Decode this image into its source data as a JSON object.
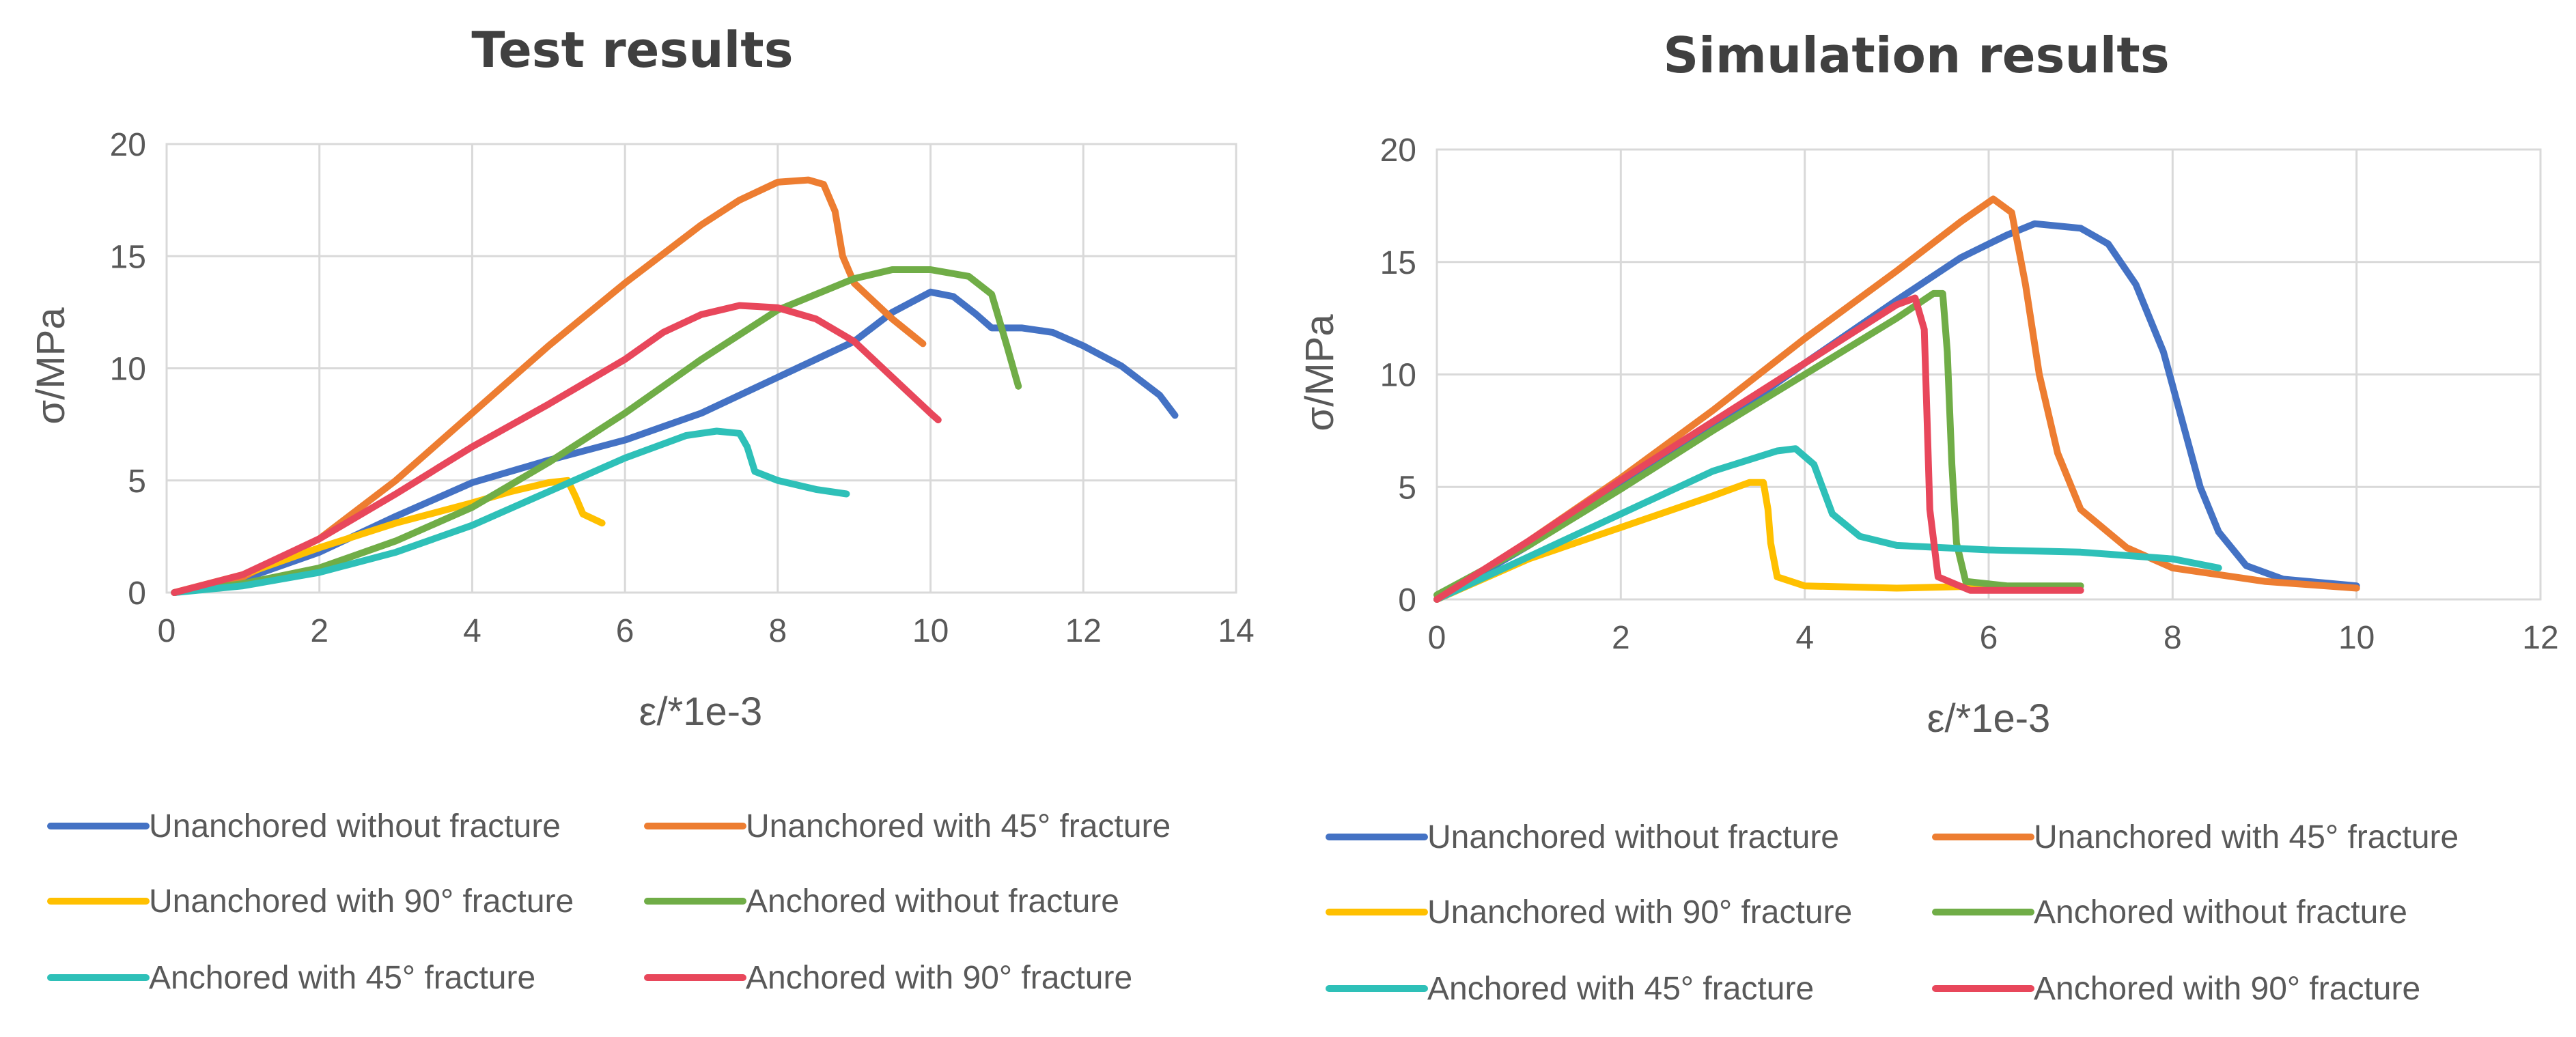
{
  "chart_data": [
    {
      "type": "line",
      "title": "Test results",
      "xlabel": "ε/*1e-3",
      "ylabel": "σ/MPa",
      "xlim": [
        0,
        14
      ],
      "ylim": [
        0,
        20
      ],
      "xticks": [
        0,
        2,
        4,
        6,
        8,
        10,
        12,
        14
      ],
      "yticks": [
        0,
        5,
        10,
        15,
        20
      ],
      "grid": true,
      "legend": "bottom",
      "series": [
        {
          "name": "Unanchored without fracture",
          "color": "#4472C4",
          "points": [
            [
              0.1,
              0
            ],
            [
              1,
              0.6
            ],
            [
              2,
              1.8
            ],
            [
              3,
              3.4
            ],
            [
              4,
              4.9
            ],
            [
              5,
              5.9
            ],
            [
              6,
              6.8
            ],
            [
              7,
              8
            ],
            [
              8,
              9.6
            ],
            [
              9,
              11.2
            ],
            [
              9.5,
              12.5
            ],
            [
              10,
              13.4
            ],
            [
              10.3,
              13.2
            ],
            [
              10.6,
              12.4
            ],
            [
              10.8,
              11.8
            ],
            [
              11.2,
              11.8
            ],
            [
              11.6,
              11.6
            ],
            [
              12,
              11
            ],
            [
              12.5,
              10.1
            ],
            [
              13,
              8.8
            ],
            [
              13.2,
              7.9
            ]
          ]
        },
        {
          "name": "Unanchored with 45° fracture",
          "color": "#ED7D31",
          "points": [
            [
              0.1,
              0
            ],
            [
              1,
              0.7
            ],
            [
              2,
              2.4
            ],
            [
              3,
              5
            ],
            [
              4,
              8
            ],
            [
              5,
              11
            ],
            [
              6,
              13.8
            ],
            [
              7,
              16.4
            ],
            [
              7.5,
              17.5
            ],
            [
              8,
              18.3
            ],
            [
              8.4,
              18.4
            ],
            [
              8.6,
              18.2
            ],
            [
              8.75,
              17
            ],
            [
              8.85,
              15
            ],
            [
              9,
              13.8
            ],
            [
              9.5,
              12.2
            ],
            [
              9.9,
              11.1
            ]
          ]
        },
        {
          "name": "Unanchored with 90° fracture",
          "color": "#FFC000",
          "points": [
            [
              0.1,
              0
            ],
            [
              1,
              0.8
            ],
            [
              2,
              2
            ],
            [
              3,
              3.1
            ],
            [
              4,
              4
            ],
            [
              4.5,
              4.5
            ],
            [
              5,
              4.9
            ],
            [
              5.25,
              5
            ],
            [
              5.35,
              4.3
            ],
            [
              5.45,
              3.5
            ],
            [
              5.7,
              3.1
            ]
          ]
        },
        {
          "name": "Anchored without fracture",
          "color": "#70AD47",
          "points": [
            [
              0.1,
              0
            ],
            [
              1,
              0.4
            ],
            [
              2,
              1.1
            ],
            [
              3,
              2.3
            ],
            [
              4,
              3.8
            ],
            [
              5,
              5.8
            ],
            [
              6,
              8
            ],
            [
              7,
              10.4
            ],
            [
              8,
              12.6
            ],
            [
              9,
              14
            ],
            [
              9.5,
              14.4
            ],
            [
              10,
              14.4
            ],
            [
              10.5,
              14.1
            ],
            [
              10.8,
              13.3
            ],
            [
              11,
              11
            ],
            [
              11.15,
              9.2
            ]
          ]
        },
        {
          "name": "Anchored with 45° fracture",
          "color": "#2EC0B8",
          "points": [
            [
              0.1,
              0
            ],
            [
              1,
              0.3
            ],
            [
              2,
              0.9
            ],
            [
              3,
              1.8
            ],
            [
              4,
              3
            ],
            [
              5,
              4.5
            ],
            [
              6,
              6
            ],
            [
              6.8,
              7
            ],
            [
              7.2,
              7.2
            ],
            [
              7.5,
              7.1
            ],
            [
              7.6,
              6.5
            ],
            [
              7.7,
              5.4
            ],
            [
              8,
              5
            ],
            [
              8.5,
              4.6
            ],
            [
              8.9,
              4.4
            ]
          ]
        },
        {
          "name": "Anchored with 90° fracture",
          "color": "#E8475B",
          "points": [
            [
              0.1,
              0
            ],
            [
              1,
              0.8
            ],
            [
              2,
              2.4
            ],
            [
              3,
              4.4
            ],
            [
              4,
              6.5
            ],
            [
              5,
              8.4
            ],
            [
              6,
              10.4
            ],
            [
              6.5,
              11.6
            ],
            [
              7,
              12.4
            ],
            [
              7.5,
              12.8
            ],
            [
              8,
              12.7
            ],
            [
              8.5,
              12.2
            ],
            [
              9,
              11.2
            ],
            [
              9.5,
              9.6
            ],
            [
              10,
              8
            ],
            [
              10.1,
              7.7
            ]
          ]
        }
      ]
    },
    {
      "type": "line",
      "title": "Simulation results",
      "xlabel": "ε/*1e-3",
      "ylabel": "σ/MPa",
      "xlim": [
        0,
        12
      ],
      "ylim": [
        0,
        20
      ],
      "xticks": [
        0,
        2,
        4,
        6,
        8,
        10,
        12
      ],
      "yticks": [
        0,
        5,
        10,
        15,
        20
      ],
      "grid": true,
      "legend": "bottom",
      "series": [
        {
          "name": "Unanchored without fracture",
          "color": "#4472C4",
          "points": [
            [
              0,
              0
            ],
            [
              1,
              2.4
            ],
            [
              2,
              5
            ],
            [
              3,
              7.6
            ],
            [
              4,
              10.5
            ],
            [
              5,
              13.3
            ],
            [
              5.7,
              15.2
            ],
            [
              6.2,
              16.2
            ],
            [
              6.5,
              16.7
            ],
            [
              7,
              16.5
            ],
            [
              7.3,
              15.8
            ],
            [
              7.6,
              14
            ],
            [
              7.9,
              11
            ],
            [
              8.1,
              8
            ],
            [
              8.3,
              5
            ],
            [
              8.5,
              3
            ],
            [
              8.8,
              1.5
            ],
            [
              9.2,
              0.9
            ],
            [
              10,
              0.6
            ]
          ]
        },
        {
          "name": "Unanchored with 45° fracture",
          "color": "#ED7D31",
          "points": [
            [
              0,
              0
            ],
            [
              1,
              2.6
            ],
            [
              2,
              5.4
            ],
            [
              3,
              8.4
            ],
            [
              4,
              11.6
            ],
            [
              5,
              14.6
            ],
            [
              5.7,
              16.8
            ],
            [
              6.05,
              17.8
            ],
            [
              6.25,
              17.2
            ],
            [
              6.4,
              14
            ],
            [
              6.55,
              10
            ],
            [
              6.75,
              6.5
            ],
            [
              7,
              4
            ],
            [
              7.5,
              2.3
            ],
            [
              8,
              1.4
            ],
            [
              9,
              0.8
            ],
            [
              10,
              0.5
            ]
          ]
        },
        {
          "name": "Unanchored with 90° fracture",
          "color": "#FFC000",
          "points": [
            [
              0,
              0
            ],
            [
              1,
              1.8
            ],
            [
              2,
              3.2
            ],
            [
              3,
              4.6
            ],
            [
              3.4,
              5.2
            ],
            [
              3.55,
              5.2
            ],
            [
              3.6,
              4
            ],
            [
              3.63,
              2.5
            ],
            [
              3.7,
              1
            ],
            [
              4,
              0.6
            ],
            [
              5,
              0.5
            ],
            [
              6,
              0.6
            ]
          ]
        },
        {
          "name": "Anchored without fracture",
          "color": "#70AD47",
          "points": [
            [
              0,
              0.2
            ],
            [
              1,
              2.4
            ],
            [
              2,
              4.9
            ],
            [
              3,
              7.5
            ],
            [
              4,
              10
            ],
            [
              5,
              12.5
            ],
            [
              5.4,
              13.6
            ],
            [
              5.5,
              13.6
            ],
            [
              5.55,
              11
            ],
            [
              5.6,
              6
            ],
            [
              5.65,
              2.5
            ],
            [
              5.75,
              0.8
            ],
            [
              6.2,
              0.6
            ],
            [
              7,
              0.6
            ]
          ]
        },
        {
          "name": "Anchored with 45° fracture",
          "color": "#2EC0B8",
          "points": [
            [
              0,
              0
            ],
            [
              1,
              1.9
            ],
            [
              2,
              3.8
            ],
            [
              3,
              5.7
            ],
            [
              3.7,
              6.6
            ],
            [
              3.9,
              6.7
            ],
            [
              4.1,
              6
            ],
            [
              4.3,
              3.8
            ],
            [
              4.6,
              2.8
            ],
            [
              5,
              2.4
            ],
            [
              6,
              2.2
            ],
            [
              7,
              2.1
            ],
            [
              8,
              1.8
            ],
            [
              8.5,
              1.4
            ]
          ]
        },
        {
          "name": "Anchored with 90° fracture",
          "color": "#E8475B",
          "points": [
            [
              0,
              0
            ],
            [
              1,
              2.6
            ],
            [
              2,
              5.3
            ],
            [
              3,
              7.9
            ],
            [
              4,
              10.5
            ],
            [
              5,
              13.1
            ],
            [
              5.2,
              13.4
            ],
            [
              5.3,
              12
            ],
            [
              5.33,
              8
            ],
            [
              5.36,
              4
            ],
            [
              5.45,
              1
            ],
            [
              5.8,
              0.4
            ],
            [
              7,
              0.4
            ]
          ]
        }
      ]
    }
  ]
}
